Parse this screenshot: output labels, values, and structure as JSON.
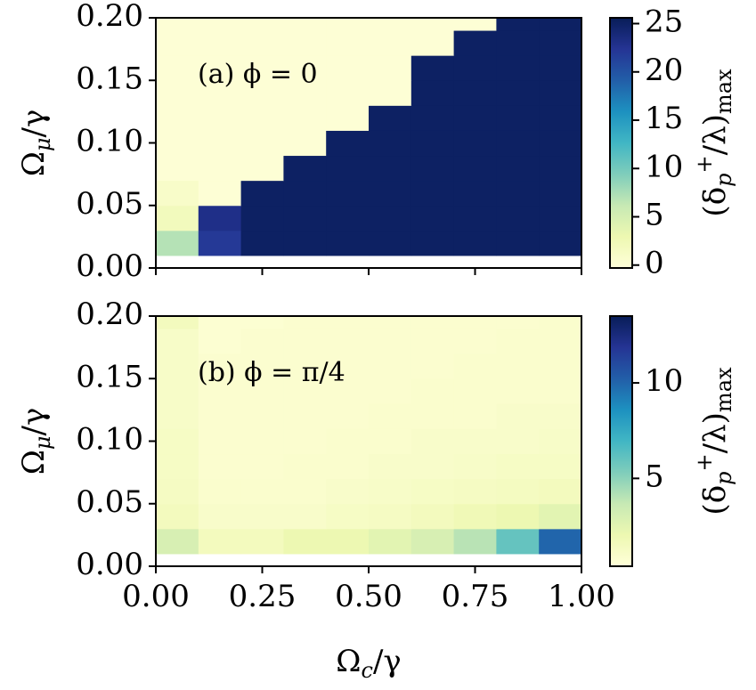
{
  "chart_data": [
    {
      "type": "heatmap",
      "annotation": "(a) ϕ = 0",
      "ylabel": [
        {
          "text": "Ω"
        },
        {
          "text": "μ",
          "sub": true
        },
        {
          "text": "/γ"
        }
      ],
      "xlim": [
        0,
        1
      ],
      "ylim": [
        0,
        0.2
      ],
      "xticks": [
        0,
        0.25,
        0.5,
        0.75,
        1
      ],
      "yticks": [
        {
          "value": 0,
          "label": "0.00"
        },
        {
          "value": 0.05,
          "label": "0.05"
        },
        {
          "value": 0.1,
          "label": "0.10"
        },
        {
          "value": 0.15,
          "label": "0.15"
        },
        {
          "value": 0.2,
          "label": "0.20"
        }
      ],
      "x_bins": [
        0,
        0.1,
        0.2,
        0.3,
        0.4,
        0.5,
        0.6,
        0.7,
        0.8,
        0.9,
        1.0
      ],
      "y_bins": [
        0.01,
        0.03,
        0.05,
        0.07,
        0.09,
        0.11,
        0.13,
        0.15,
        0.17,
        0.19,
        0.2
      ],
      "z": [
        [
          7,
          22,
          25,
          25,
          25,
          25,
          25,
          25,
          25,
          25
        ],
        [
          2,
          23,
          25,
          25,
          25,
          25,
          25,
          25,
          25,
          25
        ],
        [
          1,
          0,
          25,
          25,
          25,
          25,
          25,
          25,
          25,
          25
        ],
        [
          0,
          0,
          0,
          25,
          25,
          25,
          25,
          25,
          25,
          25
        ],
        [
          0,
          0,
          0,
          0,
          25,
          25,
          25,
          25,
          25,
          25
        ],
        [
          0,
          0,
          0,
          0,
          0,
          25,
          25,
          25,
          25,
          25
        ],
        [
          0,
          0,
          0,
          0,
          0,
          0,
          25,
          25,
          25,
          25
        ],
        [
          0,
          0,
          0,
          0,
          0,
          0,
          25,
          25,
          25,
          25
        ],
        [
          0,
          0,
          0,
          0,
          0,
          0,
          0,
          25,
          25,
          25
        ],
        [
          0,
          0,
          0,
          0,
          0,
          0,
          0,
          0,
          25,
          25
        ]
      ],
      "colors": [
        "#ffffd9",
        "#edf8b1",
        "#c7e9b4",
        "#7fcdbb",
        "#41b6c4",
        "#1d91c0",
        "#225ea8",
        "#253494",
        "#081d58"
      ],
      "colorbar": {
        "label": [
          {
            "text": "(δ"
          },
          {
            "text": "p",
            "sub": true
          },
          {
            "text": "+",
            "sup": true
          },
          {
            "text": "/λ)"
          },
          {
            "text": "max",
            "sub": true
          }
        ],
        "clim": [
          -0.3,
          25.6
        ],
        "ticks": [
          0,
          5,
          10,
          15,
          20,
          25
        ]
      }
    },
    {
      "type": "heatmap",
      "annotation": "(b) ϕ = π/4",
      "ylabel": [
        {
          "text": "Ω"
        },
        {
          "text": "μ",
          "sub": true
        },
        {
          "text": "/γ"
        }
      ],
      "xlabel": [
        {
          "text": "Ω"
        },
        {
          "text": "c",
          "sub": true
        },
        {
          "text": "/γ"
        }
      ],
      "xlim": [
        0,
        1
      ],
      "ylim": [
        0,
        0.2
      ],
      "xticks": [
        {
          "value": 0,
          "label": "0.00"
        },
        {
          "value": 0.25,
          "label": "0.25"
        },
        {
          "value": 0.5,
          "label": "0.50"
        },
        {
          "value": 0.75,
          "label": "0.75"
        },
        {
          "value": 1,
          "label": "1.00"
        }
      ],
      "yticks": [
        {
          "value": 0,
          "label": "0.00"
        },
        {
          "value": 0.05,
          "label": "0.05"
        },
        {
          "value": 0.1,
          "label": "0.10"
        },
        {
          "value": 0.15,
          "label": "0.15"
        },
        {
          "value": 0.2,
          "label": "0.20"
        }
      ],
      "x_bins": [
        0,
        0.1,
        0.2,
        0.3,
        0.4,
        0.5,
        0.6,
        0.7,
        0.8,
        0.9,
        1.0
      ],
      "y_bins": [
        0.01,
        0.03,
        0.05,
        0.07,
        0.09,
        0.11,
        0.13,
        0.15,
        0.17,
        0.19,
        0.2
      ],
      "z": [
        [
          3,
          1.5,
          1.5,
          2,
          2,
          2.5,
          3,
          4,
          6,
          10
        ],
        [
          1.5,
          1,
          1,
          1,
          1.2,
          1.3,
          1.5,
          1.8,
          2,
          2.5
        ],
        [
          1.3,
          0.9,
          0.9,
          0.9,
          1,
          1.1,
          1.2,
          1.3,
          1.4,
          1.5
        ],
        [
          1.2,
          0.8,
          0.8,
          0.9,
          0.9,
          1,
          1,
          1.1,
          1.2,
          1.2
        ],
        [
          1.2,
          0.8,
          0.8,
          0.8,
          0.9,
          0.9,
          1,
          1,
          1,
          1.1
        ],
        [
          1.1,
          0.8,
          0.8,
          0.8,
          0.8,
          0.9,
          0.9,
          0.9,
          1,
          1
        ],
        [
          1.1,
          0.8,
          0.8,
          0.8,
          0.8,
          0.8,
          0.9,
          0.9,
          0.9,
          0.9
        ],
        [
          1.1,
          0.8,
          0.8,
          0.8,
          0.8,
          0.8,
          0.8,
          0.9,
          0.9,
          0.9
        ],
        [
          1.1,
          0.7,
          0.8,
          0.8,
          0.8,
          0.8,
          0.8,
          0.8,
          0.9,
          0.9
        ],
        [
          1.5,
          0.7,
          0.7,
          0.8,
          0.8,
          0.8,
          0.8,
          0.8,
          0.8,
          0.9
        ]
      ],
      "colors": [
        "#ffffd9",
        "#edf8b1",
        "#c7e9b4",
        "#7fcdbb",
        "#41b6c4",
        "#1d91c0",
        "#225ea8",
        "#253494",
        "#081d58"
      ],
      "colorbar": {
        "label": [
          {
            "text": "(δ"
          },
          {
            "text": "p",
            "sub": true
          },
          {
            "text": "+",
            "sup": true
          },
          {
            "text": "/λ)"
          },
          {
            "text": "max",
            "sub": true
          }
        ],
        "clim": [
          0.4,
          13.5
        ],
        "ticks": [
          5,
          10
        ]
      }
    }
  ]
}
